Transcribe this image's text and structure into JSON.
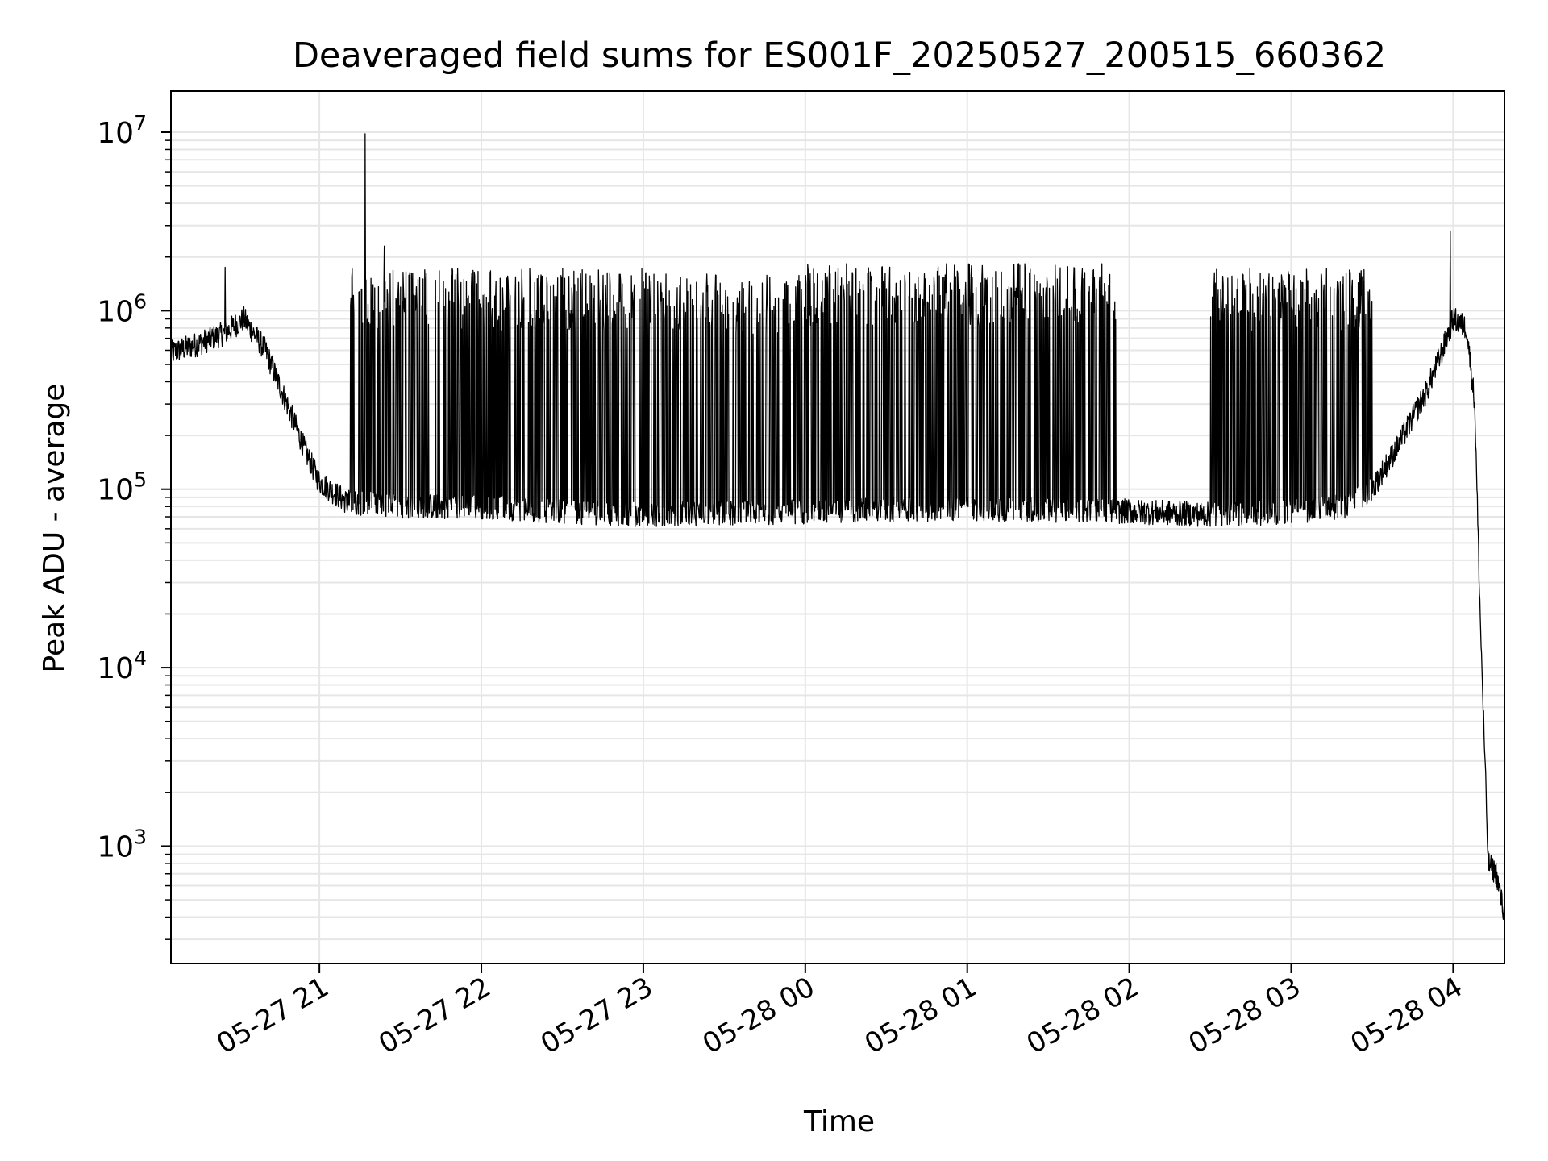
{
  "chart_data": {
    "type": "line",
    "title": "Deaveraged field sums for ES001F_20250527_200515_660362",
    "xlabel": "Time",
    "ylabel": "Peak ADU - average",
    "yscale": "log",
    "grid": true,
    "legend": "none",
    "xlim": [
      "2025-05-27 20:05",
      "2025-05-28 04:19"
    ],
    "ylim": [
      220,
      17000000
    ],
    "x_ticks": [
      "05-27 21",
      "05-27 22",
      "05-27 23",
      "05-28 00",
      "05-28 01",
      "05-28 02",
      "05-28 03",
      "05-28 04"
    ],
    "x_tick_values": [
      "2025-05-27 21:00",
      "2025-05-27 22:00",
      "2025-05-27 23:00",
      "2025-05-28 00:00",
      "2025-05-28 01:00",
      "2025-05-28 02:00",
      "2025-05-28 03:00",
      "2025-05-28 04:00"
    ],
    "y_tick_values": [
      1000,
      10000,
      100000,
      1000000,
      10000000
    ],
    "y_tick_labels": [
      {
        "base": "10",
        "exp": "3"
      },
      {
        "base": "10",
        "exp": "4"
      },
      {
        "base": "10",
        "exp": "5"
      },
      {
        "base": "10",
        "exp": "6"
      },
      {
        "base": "10",
        "exp": "7"
      }
    ],
    "series": [
      {
        "color": "#000000",
        "baseline": {
          "x": [
            "2025-05-27 20:05",
            "2025-05-27 20:15",
            "2025-05-27 20:25",
            "2025-05-27 20:32",
            "2025-05-27 20:40",
            "2025-05-27 20:48",
            "2025-05-27 20:55",
            "2025-05-27 21:00",
            "2025-05-27 21:10",
            "2025-05-27 21:30",
            "2025-05-27 22:00",
            "2025-05-27 22:30",
            "2025-05-27 23:00",
            "2025-05-28 00:00",
            "2025-05-28 01:00",
            "2025-05-28 02:00",
            "2025-05-28 02:30",
            "2025-05-28 03:00",
            "2025-05-28 03:20",
            "2025-05-28 03:30",
            "2025-05-28 03:40",
            "2025-05-28 03:50",
            "2025-05-28 03:56",
            "2025-05-28 04:00",
            "2025-05-28 04:05",
            "2025-05-28 04:08",
            "2025-05-28 04:10",
            "2025-05-28 04:13",
            "2025-05-28 04:16",
            "2025-05-28 04:19"
          ],
          "y": [
            580000,
            650000,
            750000,
            900000,
            600000,
            300000,
            160000,
            110000,
            85000,
            80000,
            80000,
            75000,
            72000,
            75000,
            78000,
            75000,
            72000,
            75000,
            80000,
            100000,
            180000,
            350000,
            600000,
            900000,
            800000,
            300000,
            20000,
            800,
            700,
            400
          ]
        },
        "spike_bursts": [
          {
            "x_start": "2025-05-27 21:10",
            "x_end": "2025-05-27 22:30",
            "peak": 1500000
          },
          {
            "x_start": "2025-05-27 22:30",
            "x_end": "2025-05-27 23:30",
            "peak": 1500000
          },
          {
            "x_start": "2025-05-27 23:30",
            "x_end": "2025-05-28 00:00",
            "peak": 1400000
          },
          {
            "x_start": "2025-05-28 00:00",
            "x_end": "2025-05-28 01:55",
            "peak": 1600000
          },
          {
            "x_start": "2025-05-28 02:30",
            "x_end": "2025-05-28 03:30",
            "peak": 1500000
          }
        ],
        "notable_points": [
          {
            "x": "2025-05-27 21:17",
            "y": 9800000
          },
          {
            "x": "2025-05-27 21:24",
            "y": 2300000
          },
          {
            "x": "2025-05-28 03:59",
            "y": 2800000
          },
          {
            "x": "2025-05-27 20:25",
            "y": 1750000
          }
        ]
      }
    ]
  }
}
